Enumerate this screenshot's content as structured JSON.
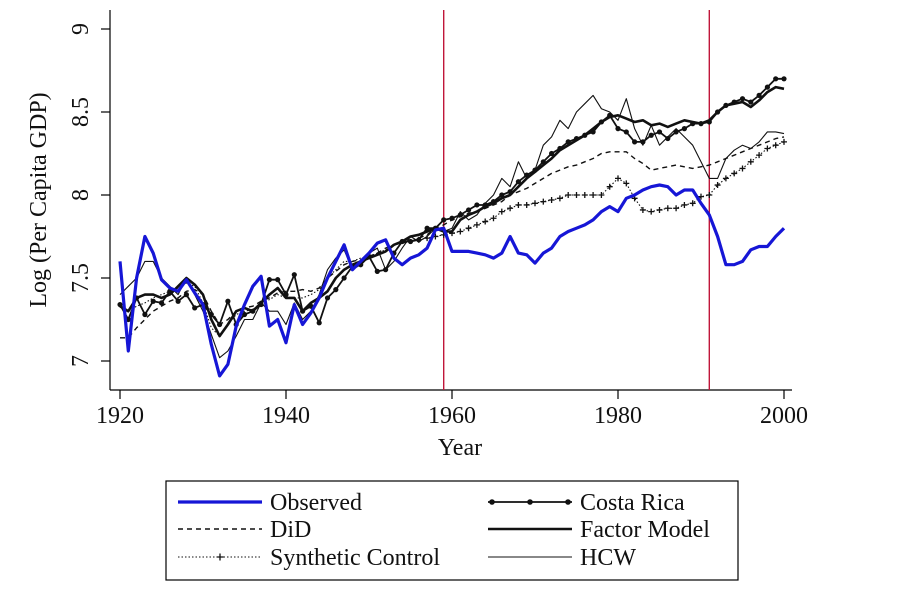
{
  "chart_data": {
    "type": "line",
    "title": "",
    "xlabel": "Year",
    "ylabel": "Log (Per Capita GDP)",
    "xlim": [
      1919,
      2001
    ],
    "ylim": [
      6.83,
      9.08
    ],
    "x_ticks": [
      1920,
      1940,
      1960,
      1980,
      2000
    ],
    "x_tick_labels": [
      "1920",
      "1940",
      "1960",
      "1980",
      "2000"
    ],
    "y_ticks": [
      7,
      7.5,
      8,
      8.5,
      9
    ],
    "y_tick_labels": [
      "7",
      "7.5",
      "8",
      "8.5",
      "9"
    ],
    "vertical_lines": [
      {
        "x": 1959,
        "color": "#c0163a"
      },
      {
        "x": 1991,
        "color": "#c0163a"
      }
    ],
    "legend_position": "bottom",
    "series": [
      {
        "name": "Observed",
        "color": "#1616d6",
        "style": "thick",
        "x": [
          1920,
          1921,
          1922,
          1923,
          1924,
          1925,
          1926,
          1927,
          1928,
          1929,
          1930,
          1931,
          1932,
          1933,
          1934,
          1935,
          1936,
          1937,
          1938,
          1939,
          1940,
          1941,
          1942,
          1943,
          1944,
          1945,
          1946,
          1947,
          1948,
          1949,
          1950,
          1951,
          1952,
          1953,
          1954,
          1955,
          1956,
          1957,
          1958,
          1959,
          1960,
          1961,
          1962,
          1963,
          1964,
          1965,
          1966,
          1967,
          1968,
          1969,
          1970,
          1971,
          1972,
          1973,
          1974,
          1975,
          1976,
          1977,
          1978,
          1979,
          1980,
          1981,
          1982,
          1983,
          1984,
          1985,
          1986,
          1987,
          1988,
          1989,
          1990,
          1991,
          1992,
          1993,
          1994,
          1995,
          1996,
          1997,
          1998,
          1999,
          2000
        ],
        "values": [
          7.6,
          7.06,
          7.5,
          7.75,
          7.65,
          7.49,
          7.44,
          7.42,
          7.49,
          7.41,
          7.34,
          7.1,
          6.91,
          6.98,
          7.21,
          7.34,
          7.45,
          7.51,
          7.21,
          7.25,
          7.11,
          7.34,
          7.22,
          7.29,
          7.38,
          7.5,
          7.6,
          7.7,
          7.55,
          7.6,
          7.65,
          7.71,
          7.73,
          7.62,
          7.58,
          7.62,
          7.64,
          7.68,
          7.79,
          7.8,
          7.66,
          7.66,
          7.66,
          7.65,
          7.64,
          7.62,
          7.65,
          7.75,
          7.65,
          7.64,
          7.59,
          7.65,
          7.68,
          7.75,
          7.78,
          7.8,
          7.82,
          7.85,
          7.9,
          7.93,
          7.9,
          7.98,
          8.0,
          8.03,
          8.05,
          8.06,
          8.05,
          8.0,
          8.03,
          8.03,
          7.95,
          7.88,
          7.75,
          7.58,
          7.58,
          7.6,
          7.67,
          7.69,
          7.69,
          7.75,
          7.8
        ]
      },
      {
        "name": "DiD",
        "color": "#111111",
        "style": "dashed",
        "x": [
          1920,
          1921,
          1922,
          1923,
          1924,
          1925,
          1926,
          1927,
          1928,
          1929,
          1930,
          1931,
          1932,
          1933,
          1934,
          1935,
          1936,
          1937,
          1938,
          1939,
          1940,
          1941,
          1942,
          1943,
          1944,
          1945,
          1946,
          1947,
          1948,
          1949,
          1950,
          1951,
          1952,
          1953,
          1954,
          1955,
          1956,
          1957,
          1958,
          1959,
          1960,
          1961,
          1962,
          1963,
          1964,
          1965,
          1966,
          1967,
          1968,
          1969,
          1970,
          1971,
          1972,
          1973,
          1974,
          1975,
          1976,
          1977,
          1978,
          1979,
          1980,
          1981,
          1982,
          1983,
          1984,
          1985,
          1986,
          1987,
          1988,
          1989,
          1990,
          1991,
          1992,
          1993,
          1994,
          1995,
          1996,
          1997,
          1998,
          1999,
          2000
        ],
        "values": [
          7.14,
          7.14,
          7.2,
          7.25,
          7.3,
          7.33,
          7.36,
          7.38,
          7.42,
          7.43,
          7.4,
          7.3,
          7.22,
          7.25,
          7.3,
          7.32,
          7.33,
          7.36,
          7.38,
          7.41,
          7.42,
          7.42,
          7.43,
          7.42,
          7.44,
          7.5,
          7.54,
          7.58,
          7.6,
          7.61,
          7.63,
          7.65,
          7.68,
          7.7,
          7.71,
          7.72,
          7.74,
          7.76,
          7.8,
          7.82,
          7.85,
          7.87,
          7.89,
          7.9,
          7.92,
          7.94,
          7.96,
          8.0,
          8.02,
          8.04,
          8.07,
          8.1,
          8.13,
          8.15,
          8.17,
          8.18,
          8.2,
          8.22,
          8.25,
          8.26,
          8.26,
          8.26,
          8.22,
          8.19,
          8.15,
          8.16,
          8.17,
          8.18,
          8.17,
          8.16,
          8.17,
          8.18,
          8.2,
          8.22,
          8.24,
          8.26,
          8.28,
          8.3,
          8.32,
          8.34,
          8.35
        ]
      },
      {
        "name": "Synthetic Control",
        "color": "#111111",
        "style": "dotted-plus",
        "x": [
          1920,
          1921,
          1922,
          1923,
          1924,
          1925,
          1926,
          1927,
          1928,
          1929,
          1930,
          1931,
          1932,
          1933,
          1934,
          1935,
          1936,
          1937,
          1938,
          1939,
          1940,
          1941,
          1942,
          1943,
          1944,
          1945,
          1946,
          1947,
          1948,
          1949,
          1950,
          1951,
          1952,
          1953,
          1954,
          1955,
          1956,
          1957,
          1958,
          1959,
          1960,
          1961,
          1962,
          1963,
          1964,
          1965,
          1966,
          1967,
          1968,
          1969,
          1970,
          1971,
          1972,
          1973,
          1974,
          1975,
          1976,
          1977,
          1978,
          1979,
          1980,
          1981,
          1982,
          1983,
          1984,
          1985,
          1986,
          1987,
          1988,
          1989,
          1990,
          1991,
          1992,
          1993,
          1994,
          1995,
          1996,
          1997,
          1998,
          1999,
          2000
        ],
        "values": [
          7.33,
          7.3,
          7.33,
          7.35,
          7.38,
          7.4,
          7.42,
          7.44,
          7.47,
          7.45,
          7.35,
          7.2,
          7.15,
          7.22,
          7.28,
          7.3,
          7.31,
          7.35,
          7.37,
          7.4,
          7.38,
          7.38,
          7.38,
          7.4,
          7.43,
          7.5,
          7.55,
          7.6,
          7.6,
          7.62,
          7.63,
          7.65,
          7.67,
          7.7,
          7.71,
          7.72,
          7.73,
          7.74,
          7.75,
          7.76,
          7.77,
          7.78,
          7.8,
          7.82,
          7.84,
          7.86,
          7.9,
          7.92,
          7.94,
          7.94,
          7.95,
          7.96,
          7.97,
          7.98,
          8.0,
          8.0,
          8.0,
          8.0,
          8.0,
          8.05,
          8.1,
          8.07,
          7.98,
          7.91,
          7.9,
          7.91,
          7.92,
          7.92,
          7.94,
          7.95,
          7.99,
          8.0,
          8.06,
          8.1,
          8.13,
          8.16,
          8.2,
          8.24,
          8.28,
          8.3,
          8.32
        ]
      },
      {
        "name": "Costa Rica",
        "color": "#111111",
        "style": "solid-dots",
        "x": [
          1920,
          1921,
          1922,
          1923,
          1924,
          1925,
          1926,
          1927,
          1928,
          1929,
          1930,
          1931,
          1932,
          1933,
          1934,
          1935,
          1936,
          1937,
          1938,
          1939,
          1940,
          1941,
          1942,
          1943,
          1944,
          1945,
          1946,
          1947,
          1948,
          1949,
          1950,
          1951,
          1952,
          1953,
          1954,
          1955,
          1956,
          1957,
          1958,
          1959,
          1960,
          1961,
          1962,
          1963,
          1964,
          1965,
          1966,
          1967,
          1968,
          1969,
          1970,
          1971,
          1972,
          1973,
          1974,
          1975,
          1976,
          1977,
          1978,
          1979,
          1980,
          1981,
          1982,
          1983,
          1984,
          1985,
          1986,
          1987,
          1988,
          1989,
          1990,
          1991,
          1992,
          1993,
          1994,
          1995,
          1996,
          1997,
          1998,
          1999,
          2000
        ],
        "values": [
          7.34,
          7.25,
          7.38,
          7.28,
          7.36,
          7.35,
          7.42,
          7.36,
          7.4,
          7.32,
          7.34,
          7.28,
          7.22,
          7.36,
          7.22,
          7.28,
          7.3,
          7.34,
          7.49,
          7.49,
          7.4,
          7.52,
          7.3,
          7.33,
          7.23,
          7.38,
          7.43,
          7.5,
          7.57,
          7.58,
          7.63,
          7.54,
          7.55,
          7.65,
          7.72,
          7.72,
          7.73,
          7.8,
          7.8,
          7.85,
          7.86,
          7.88,
          7.91,
          7.94,
          7.94,
          7.96,
          8.0,
          8.02,
          8.08,
          8.12,
          8.15,
          8.2,
          8.25,
          8.28,
          8.32,
          8.34,
          8.36,
          8.38,
          8.44,
          8.48,
          8.4,
          8.38,
          8.32,
          8.32,
          8.36,
          8.38,
          8.34,
          8.38,
          8.4,
          8.43,
          8.43,
          8.44,
          8.5,
          8.54,
          8.56,
          8.58,
          8.56,
          8.6,
          8.65,
          8.7,
          8.7
        ]
      },
      {
        "name": "Factor Model",
        "color": "#111111",
        "style": "thick-black",
        "x": [
          1920,
          1921,
          1922,
          1923,
          1924,
          1925,
          1926,
          1927,
          1928,
          1929,
          1930,
          1931,
          1932,
          1933,
          1934,
          1935,
          1936,
          1937,
          1938,
          1939,
          1940,
          1941,
          1942,
          1943,
          1944,
          1945,
          1946,
          1947,
          1948,
          1949,
          1950,
          1951,
          1952,
          1953,
          1954,
          1955,
          1956,
          1957,
          1958,
          1959,
          1960,
          1961,
          1962,
          1963,
          1964,
          1965,
          1966,
          1967,
          1968,
          1969,
          1970,
          1971,
          1972,
          1973,
          1974,
          1975,
          1976,
          1977,
          1978,
          1979,
          1980,
          1981,
          1982,
          1983,
          1984,
          1985,
          1986,
          1987,
          1988,
          1989,
          1990,
          1991,
          1992,
          1993,
          1994,
          1995,
          1996,
          1997,
          1998,
          1999,
          2000
        ],
        "values": [
          7.33,
          7.3,
          7.38,
          7.4,
          7.4,
          7.38,
          7.4,
          7.45,
          7.5,
          7.46,
          7.4,
          7.25,
          7.15,
          7.22,
          7.3,
          7.32,
          7.3,
          7.35,
          7.4,
          7.44,
          7.38,
          7.38,
          7.3,
          7.35,
          7.38,
          7.42,
          7.5,
          7.55,
          7.58,
          7.6,
          7.62,
          7.64,
          7.66,
          7.7,
          7.72,
          7.75,
          7.76,
          7.78,
          7.8,
          7.78,
          7.78,
          7.85,
          7.88,
          7.9,
          7.93,
          7.95,
          7.98,
          8.0,
          8.05,
          8.1,
          8.14,
          8.18,
          8.22,
          8.27,
          8.3,
          8.33,
          8.36,
          8.4,
          8.44,
          8.47,
          8.48,
          8.46,
          8.44,
          8.45,
          8.42,
          8.43,
          8.41,
          8.43,
          8.45,
          8.44,
          8.43,
          8.45,
          8.5,
          8.54,
          8.55,
          8.56,
          8.53,
          8.57,
          8.62,
          8.65,
          8.64
        ]
      },
      {
        "name": "HCW",
        "color": "#111111",
        "style": "thin",
        "x": [
          1920,
          1921,
          1922,
          1923,
          1924,
          1925,
          1926,
          1927,
          1928,
          1929,
          1930,
          1931,
          1932,
          1933,
          1934,
          1935,
          1936,
          1937,
          1938,
          1939,
          1940,
          1941,
          1942,
          1943,
          1944,
          1945,
          1946,
          1947,
          1948,
          1949,
          1950,
          1951,
          1952,
          1953,
          1954,
          1955,
          1956,
          1957,
          1958,
          1959,
          1960,
          1961,
          1962,
          1963,
          1964,
          1965,
          1966,
          1967,
          1968,
          1969,
          1970,
          1971,
          1972,
          1973,
          1974,
          1975,
          1976,
          1977,
          1978,
          1979,
          1980,
          1981,
          1982,
          1983,
          1984,
          1985,
          1986,
          1987,
          1988,
          1989,
          1990,
          1991,
          1992,
          1993,
          1994,
          1995,
          1996,
          1997,
          1998,
          1999,
          2000
        ],
        "values": [
          7.4,
          7.45,
          7.5,
          7.6,
          7.6,
          7.5,
          7.45,
          7.4,
          7.5,
          7.4,
          7.3,
          7.16,
          7.02,
          7.06,
          7.15,
          7.25,
          7.25,
          7.35,
          7.3,
          7.3,
          7.22,
          7.35,
          7.25,
          7.3,
          7.4,
          7.55,
          7.62,
          7.67,
          7.55,
          7.58,
          7.65,
          7.68,
          7.55,
          7.6,
          7.68,
          7.75,
          7.72,
          7.75,
          7.8,
          7.78,
          7.8,
          7.9,
          7.85,
          7.88,
          7.95,
          8.0,
          8.1,
          8.05,
          8.2,
          8.1,
          8.15,
          8.3,
          8.35,
          8.45,
          8.4,
          8.5,
          8.55,
          8.6,
          8.52,
          8.5,
          8.45,
          8.58,
          8.4,
          8.3,
          8.42,
          8.3,
          8.35,
          8.4,
          8.35,
          8.3,
          8.2,
          8.1,
          8.1,
          8.22,
          8.27,
          8.3,
          8.28,
          8.32,
          8.38,
          8.38,
          8.37
        ]
      }
    ]
  }
}
